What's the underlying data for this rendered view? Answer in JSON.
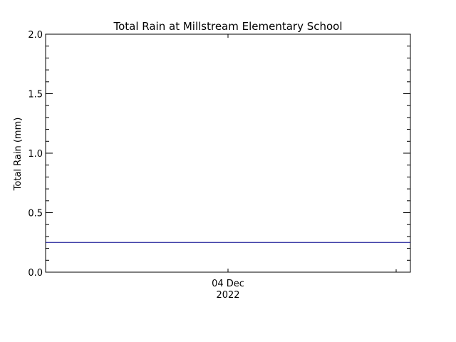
{
  "chart_data": {
    "type": "line",
    "title": "Total Rain at Millstream Elementary School",
    "ylabel": "Total Rain (mm)",
    "xlabel": "",
    "ylim": [
      0.0,
      2.0
    ],
    "yticks": [
      "0.0",
      "0.5",
      "1.0",
      "1.5",
      "2.0"
    ],
    "ytick_values": [
      0.0,
      0.5,
      1.0,
      1.5,
      2.0
    ],
    "x_tick_label": {
      "line1": "04 Dec",
      "line2": "2022"
    },
    "series": [
      {
        "color": "#00008b",
        "x": [
          "start",
          "end"
        ],
        "values": [
          0.25,
          0.25
        ]
      }
    ],
    "grid": false
  }
}
